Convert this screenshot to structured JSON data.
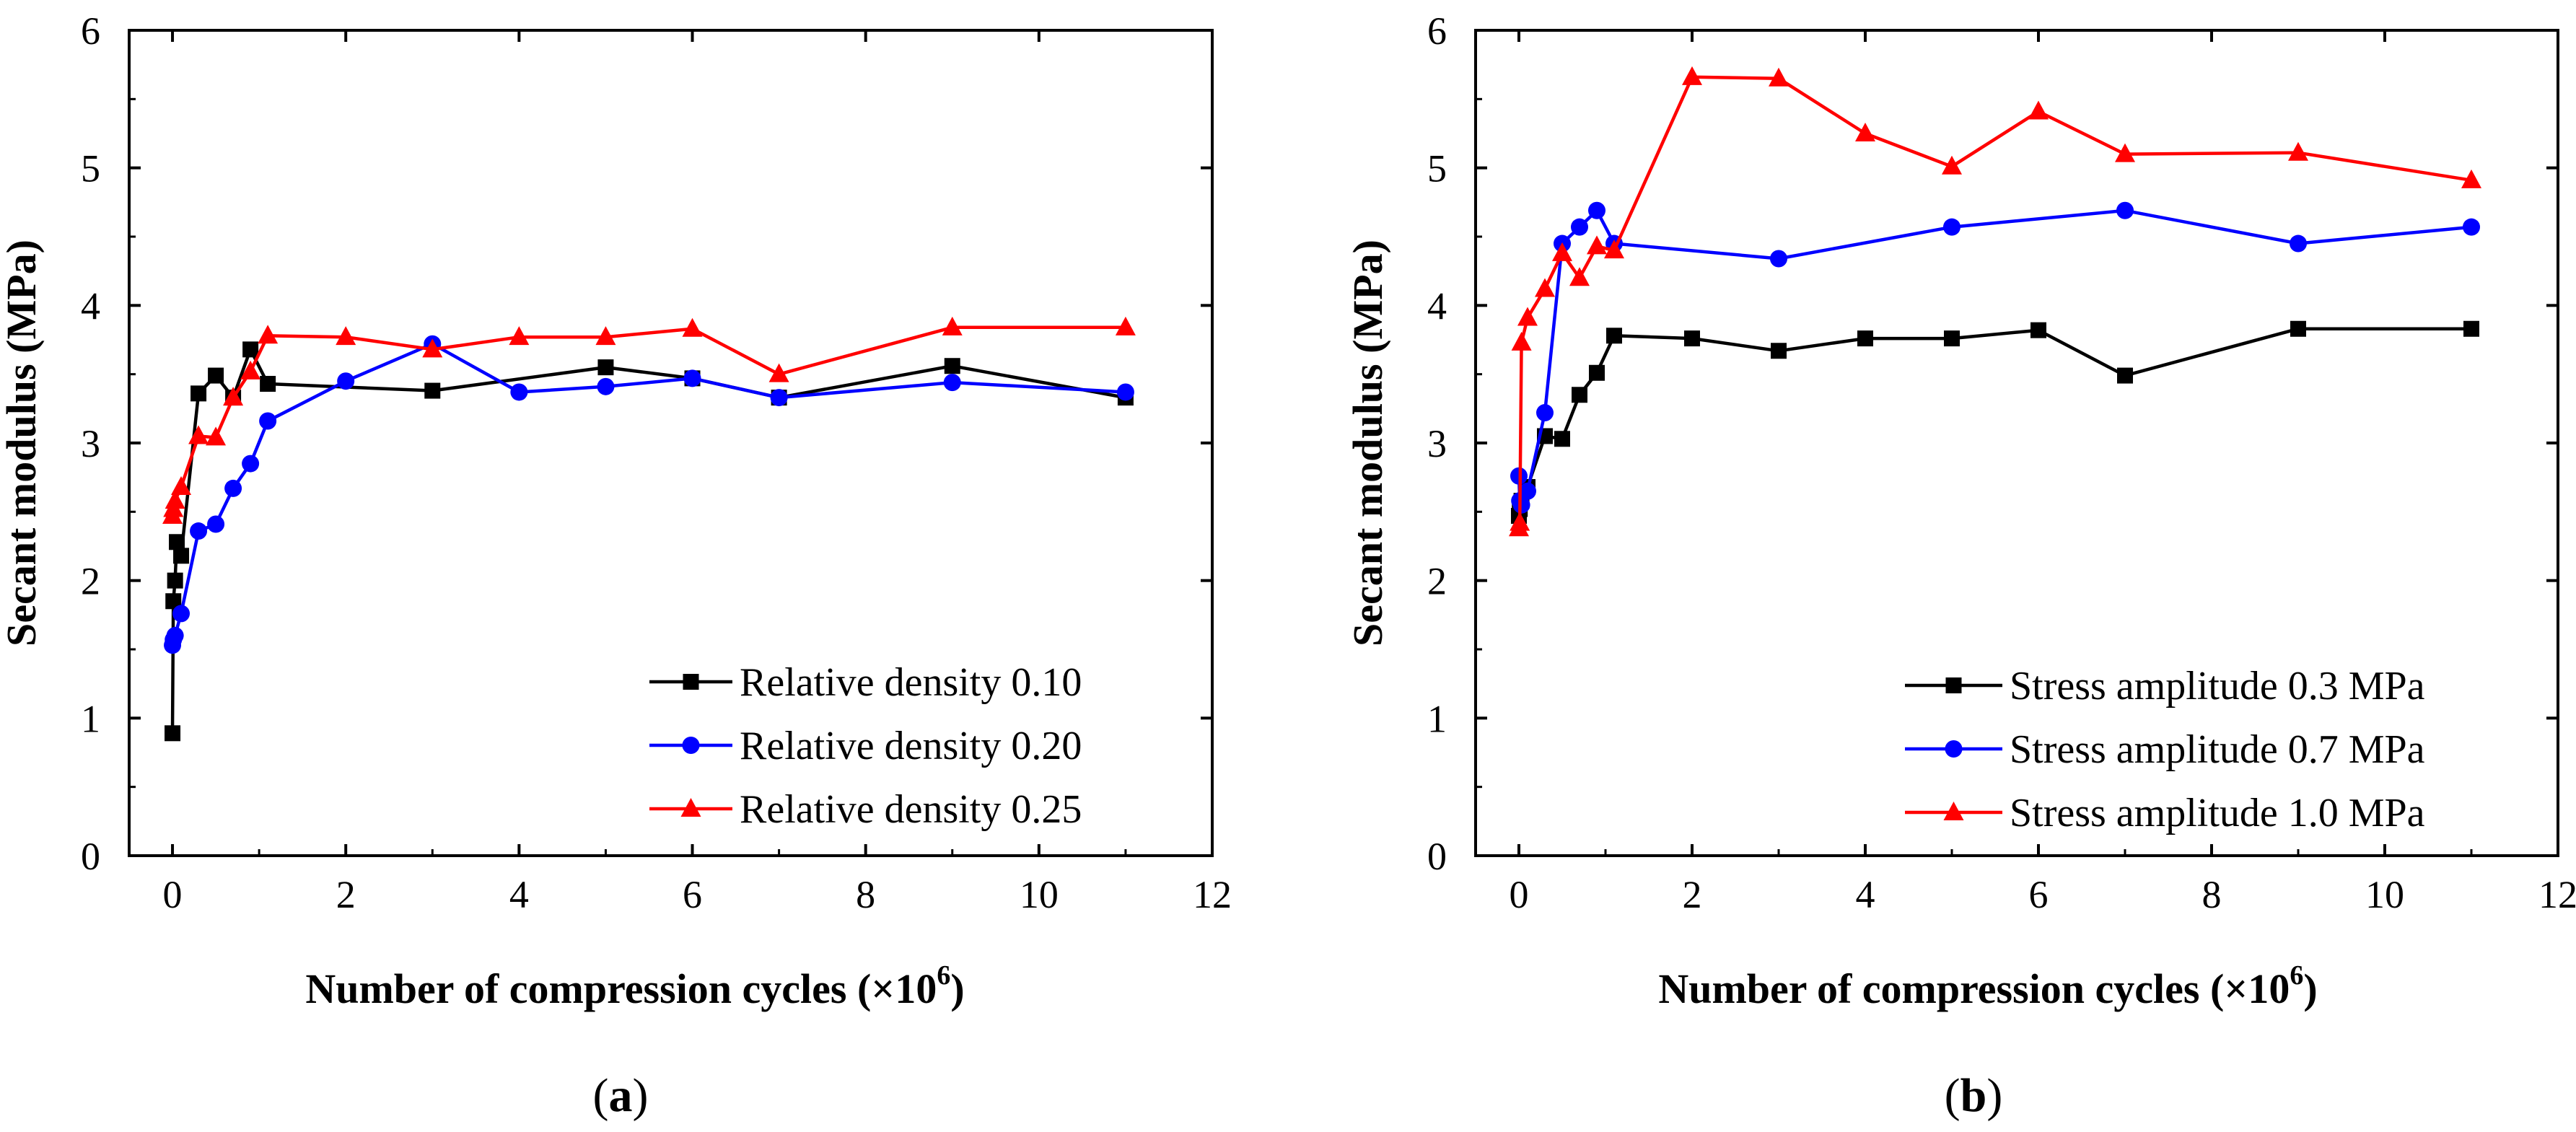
{
  "chart_data": [
    {
      "type": "line",
      "panel_label_open": "(",
      "panel_label": "a",
      "panel_label_close": ")",
      "xlabel": "Number of compression cycles (×10",
      "xlabel_exponent": "6",
      "xlabel_close": ")",
      "ylabel": "Secant modulus (MPa)",
      "xlim": [
        -0.5,
        12
      ],
      "ylim": [
        0,
        6
      ],
      "xticks": [
        0,
        2,
        4,
        6,
        8,
        10,
        12
      ],
      "yticks": [
        0,
        1,
        2,
        3,
        4,
        5,
        6
      ],
      "legend_position": "bottom-right",
      "series": [
        {
          "name": "Relative density 0.10",
          "color": "#000000",
          "marker": "square",
          "x": [
            0,
            0.01,
            0.03,
            0.05,
            0.1,
            0.3,
            0.5,
            0.7,
            0.9,
            1.1,
            3,
            5,
            6,
            7,
            9,
            11
          ],
          "y": [
            0.89,
            1.85,
            2.0,
            2.28,
            2.18,
            3.36,
            3.49,
            3.33,
            3.68,
            3.43,
            3.38,
            3.55,
            3.47,
            3.33,
            3.56,
            3.33
          ]
        },
        {
          "name": "Relative density 0.20",
          "color": "#0000ff",
          "marker": "circle",
          "x": [
            0,
            0.01,
            0.03,
            0.1,
            0.3,
            0.5,
            0.7,
            0.9,
            1.1,
            2,
            3,
            4,
            5,
            6,
            7,
            9,
            11
          ],
          "y": [
            1.53,
            1.57,
            1.6,
            1.76,
            2.36,
            2.41,
            2.67,
            2.85,
            3.16,
            3.45,
            3.72,
            3.37,
            3.41,
            3.47,
            3.33,
            3.44,
            3.37
          ]
        },
        {
          "name": "Relative density 0.25",
          "color": "#ff0000",
          "marker": "triangle",
          "x": [
            0,
            0.01,
            0.03,
            0.1,
            0.3,
            0.5,
            0.7,
            0.9,
            1.1,
            2,
            3,
            4,
            5,
            6,
            7,
            9,
            11
          ],
          "y": [
            2.47,
            2.52,
            2.58,
            2.68,
            3.05,
            3.04,
            3.33,
            3.52,
            3.78,
            3.77,
            3.68,
            3.77,
            3.77,
            3.83,
            3.5,
            3.84,
            3.84
          ]
        }
      ]
    },
    {
      "type": "line",
      "panel_label_open": "(",
      "panel_label": "b",
      "panel_label_close": ")",
      "xlabel": "Number of compression cycles (×10",
      "xlabel_exponent": "6",
      "xlabel_close": ")",
      "ylabel": "Secant modulus (MPa)",
      "xlim": [
        -0.5,
        12
      ],
      "ylim": [
        0,
        6
      ],
      "xticks": [
        0,
        2,
        4,
        6,
        8,
        10,
        12
      ],
      "yticks": [
        0,
        1,
        2,
        3,
        4,
        5,
        6
      ],
      "legend_position": "bottom-right",
      "series": [
        {
          "name": "Stress amplitude 0.3 MPa",
          "color": "#000000",
          "marker": "square",
          "x": [
            0,
            0.01,
            0.03,
            0.1,
            0.3,
            0.5,
            0.7,
            0.9,
            1.1,
            2,
            3,
            4,
            5,
            6,
            7,
            9,
            11
          ],
          "y": [
            2.47,
            2.52,
            2.58,
            2.68,
            3.05,
            3.03,
            3.35,
            3.51,
            3.78,
            3.76,
            3.67,
            3.76,
            3.76,
            3.82,
            3.49,
            3.83,
            3.83
          ]
        },
        {
          "name": "Stress amplitude 0.7 MPa",
          "color": "#0000ff",
          "marker": "circle",
          "x": [
            0,
            0.01,
            0.03,
            0.1,
            0.3,
            0.5,
            0.7,
            0.9,
            1.1,
            3,
            5,
            7,
            9,
            11
          ],
          "y": [
            2.76,
            2.58,
            2.55,
            2.65,
            3.22,
            4.45,
            4.57,
            4.69,
            4.45,
            4.34,
            4.57,
            4.69,
            4.45,
            4.57
          ]
        },
        {
          "name": "Stress amplitude 1.0 MPa",
          "color": "#ff0000",
          "marker": "triangle",
          "x": [
            0,
            0.01,
            0.03,
            0.1,
            0.3,
            0.5,
            0.7,
            0.9,
            1.1,
            2,
            3,
            4,
            5,
            6,
            7,
            9,
            11
          ],
          "y": [
            2.38,
            2.42,
            3.73,
            3.91,
            4.12,
            4.38,
            4.2,
            4.43,
            4.4,
            5.66,
            5.65,
            5.25,
            5.01,
            5.41,
            5.1,
            5.11,
            4.91
          ]
        }
      ]
    }
  ]
}
